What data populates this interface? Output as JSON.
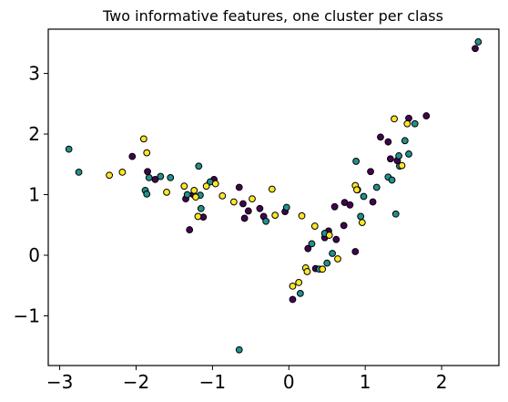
{
  "chart_data": {
    "type": "scatter",
    "title": "Two informative features, one cluster per class",
    "xlabel": "",
    "ylabel": "",
    "xlim": [
      -3.15,
      2.75
    ],
    "ylim": [
      -1.82,
      3.73
    ],
    "xticks": [
      -3,
      -2,
      -1,
      0,
      1,
      2
    ],
    "yticks": [
      -1,
      0,
      1,
      2,
      3
    ],
    "xtick_labels": [
      "−3",
      "−2",
      "−1",
      "0",
      "1",
      "2"
    ],
    "ytick_labels": [
      "−1",
      "0",
      "1",
      "2",
      "3"
    ],
    "grid": false,
    "legend": false,
    "classes": [
      {
        "color": "#440154",
        "points": [
          [
            -2.05,
            1.63
          ],
          [
            -1.85,
            1.38
          ],
          [
            -1.75,
            1.25
          ],
          [
            -1.35,
            0.93
          ],
          [
            -1.3,
            0.42
          ],
          [
            -1.25,
            1.0
          ],
          [
            -1.12,
            0.63
          ],
          [
            -0.98,
            1.25
          ],
          [
            -0.65,
            1.12
          ],
          [
            -0.6,
            0.85
          ],
          [
            -0.58,
            0.61
          ],
          [
            -0.53,
            0.73
          ],
          [
            -0.38,
            0.77
          ],
          [
            -0.33,
            0.64
          ],
          [
            -0.05,
            0.72
          ],
          [
            0.05,
            -0.73
          ],
          [
            0.25,
            0.11
          ],
          [
            0.35,
            -0.22
          ],
          [
            0.47,
            0.29
          ],
          [
            0.52,
            0.4
          ],
          [
            0.6,
            0.8
          ],
          [
            0.62,
            0.26
          ],
          [
            0.72,
            0.49
          ],
          [
            0.73,
            0.87
          ],
          [
            0.8,
            0.83
          ],
          [
            0.87,
            0.06
          ],
          [
            0.9,
            1.08
          ],
          [
            1.07,
            1.38
          ],
          [
            1.1,
            0.88
          ],
          [
            1.2,
            1.95
          ],
          [
            1.3,
            1.87
          ],
          [
            1.33,
            1.59
          ],
          [
            1.42,
            1.56
          ],
          [
            1.57,
            2.26
          ],
          [
            1.8,
            2.3
          ],
          [
            2.44,
            3.41
          ]
        ]
      },
      {
        "color": "#21918c",
        "points": [
          [
            -2.88,
            1.75
          ],
          [
            -2.75,
            1.37
          ],
          [
            -1.88,
            1.07
          ],
          [
            -1.86,
            1.01
          ],
          [
            -1.83,
            1.28
          ],
          [
            -1.68,
            1.3
          ],
          [
            -1.55,
            1.28
          ],
          [
            -1.33,
            1.0
          ],
          [
            -1.18,
            1.47
          ],
          [
            -1.16,
            0.99
          ],
          [
            -1.15,
            0.77
          ],
          [
            -1.03,
            1.21
          ],
          [
            -0.65,
            -1.56
          ],
          [
            -0.3,
            0.56
          ],
          [
            -0.03,
            0.79
          ],
          [
            0.15,
            -0.63
          ],
          [
            0.3,
            0.19
          ],
          [
            0.4,
            -0.23
          ],
          [
            0.47,
            0.36
          ],
          [
            0.5,
            -0.13
          ],
          [
            0.57,
            0.03
          ],
          [
            0.88,
            1.55
          ],
          [
            0.94,
            0.64
          ],
          [
            0.98,
            0.97
          ],
          [
            1.15,
            1.12
          ],
          [
            1.3,
            1.29
          ],
          [
            1.35,
            1.24
          ],
          [
            1.4,
            0.68
          ],
          [
            1.44,
            1.64
          ],
          [
            1.45,
            1.47
          ],
          [
            1.52,
            1.89
          ],
          [
            1.57,
            1.67
          ],
          [
            1.65,
            2.17
          ],
          [
            2.48,
            3.52
          ]
        ]
      },
      {
        "color": "#fde725",
        "points": [
          [
            -2.35,
            1.32
          ],
          [
            -2.18,
            1.37
          ],
          [
            -1.9,
            1.92
          ],
          [
            -1.86,
            1.69
          ],
          [
            -1.6,
            1.04
          ],
          [
            -1.37,
            1.14
          ],
          [
            -1.24,
            1.07
          ],
          [
            -1.22,
            0.96
          ],
          [
            -1.19,
            0.64
          ],
          [
            -1.08,
            1.14
          ],
          [
            -0.96,
            1.18
          ],
          [
            -0.87,
            0.98
          ],
          [
            -0.72,
            0.88
          ],
          [
            -0.48,
            0.93
          ],
          [
            -0.22,
            1.09
          ],
          [
            -0.18,
            0.66
          ],
          [
            0.05,
            -0.51
          ],
          [
            0.13,
            -0.45
          ],
          [
            0.17,
            0.65
          ],
          [
            0.22,
            -0.21
          ],
          [
            0.24,
            -0.27
          ],
          [
            0.34,
            0.48
          ],
          [
            0.44,
            -0.23
          ],
          [
            0.53,
            0.33
          ],
          [
            0.64,
            -0.06
          ],
          [
            0.87,
            1.15
          ],
          [
            0.89,
            1.08
          ],
          [
            0.96,
            0.54
          ],
          [
            1.38,
            2.25
          ],
          [
            1.48,
            1.48
          ],
          [
            1.55,
            2.17
          ]
        ]
      }
    ]
  }
}
